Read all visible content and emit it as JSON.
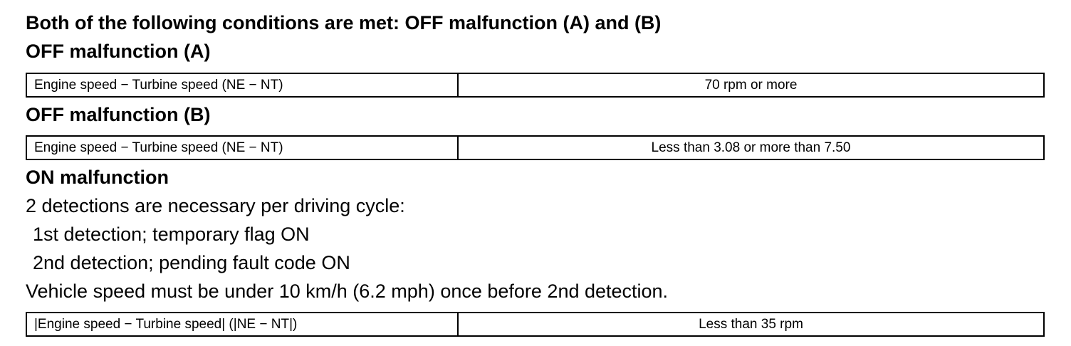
{
  "intro_heading": "Both of the following conditions are met: OFF malfunction (A) and (B)",
  "off_a": {
    "heading": "OFF malfunction (A)",
    "row": {
      "parameter": "Engine speed − Turbine speed (NE − NT)",
      "value": "70 rpm or more"
    }
  },
  "off_b": {
    "heading": "OFF malfunction (B)",
    "row": {
      "parameter": "Engine speed − Turbine speed (NE − NT)",
      "value": "Less than 3.08 or more than 7.50"
    }
  },
  "on": {
    "heading": "ON malfunction",
    "lines": [
      "2 detections are necessary per driving cycle:",
      "1st detection; temporary flag ON",
      "2nd detection; pending fault code ON",
      "Vehicle speed must be under 10 km/h (6.2 mph) once before 2nd detection."
    ],
    "row": {
      "parameter": "|Engine speed − Turbine speed| (|NE − NT|)",
      "value": "Less than 35 rpm"
    }
  }
}
